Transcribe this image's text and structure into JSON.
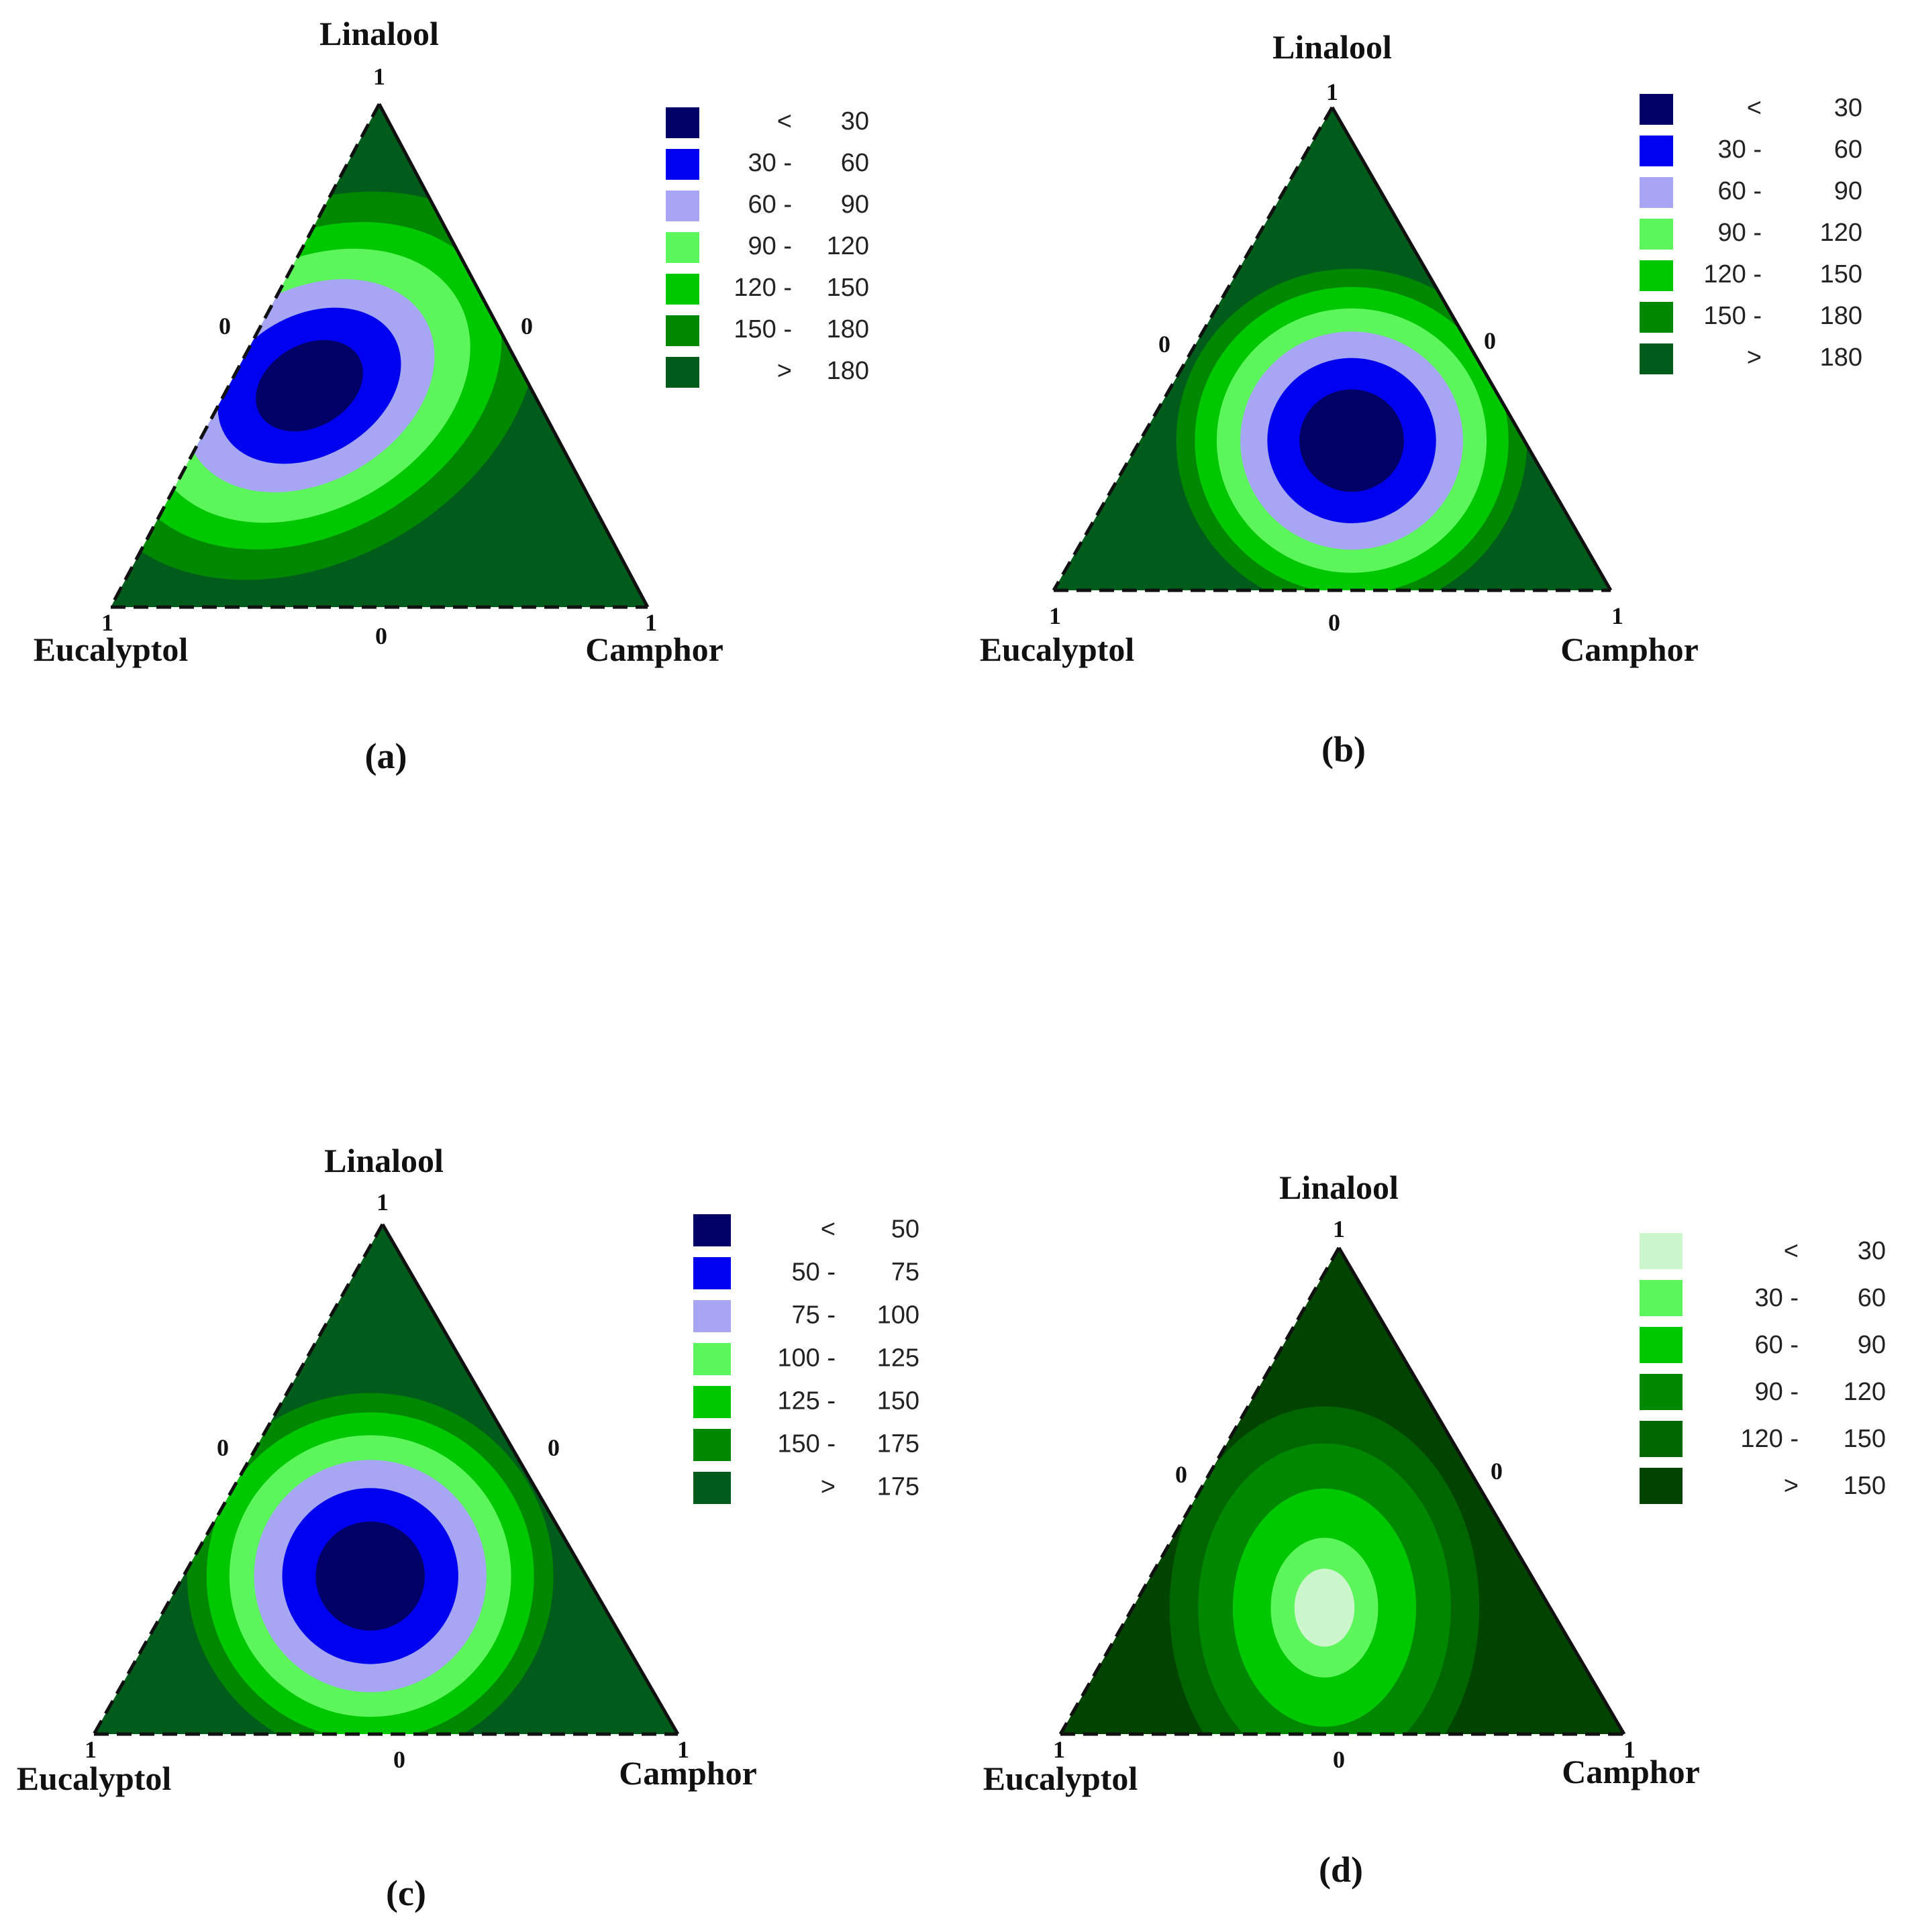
{
  "chart_data": [
    {
      "type": "ternary-contour",
      "panel_label": "(a)",
      "vertices": {
        "top": "Linalool",
        "left": "Eucalyptol",
        "right": "Camphor"
      },
      "ticks": {
        "top": "1",
        "left": "1",
        "right": "1",
        "mid_left": "0",
        "mid_right": "0",
        "mid_bottom": "0"
      },
      "legend": [
        {
          "lo": "<",
          "hi": "30",
          "color": "#000066"
        },
        {
          "lo": "30 -",
          "hi": "60",
          "color": "#0000f0"
        },
        {
          "lo": "60 -",
          "hi": "90",
          "color": "#a6a6f5"
        },
        {
          "lo": "90 -",
          "hi": "120",
          "color": "#5cf55c"
        },
        {
          "lo": "120 -",
          "hi": "150",
          "color": "#00c800"
        },
        {
          "lo": "150 -",
          "hi": "180",
          "color": "#008800"
        },
        {
          "lo": ">",
          "hi": "180",
          "color": "#005c1a"
        }
      ],
      "contour_center": {
        "linalool": 0.44,
        "eucalyptol": 0.41,
        "camphor": 0.15
      }
    },
    {
      "type": "ternary-contour",
      "panel_label": "(b)",
      "vertices": {
        "top": "Linalool",
        "left": "Eucalyptol",
        "right": "Camphor"
      },
      "ticks": {
        "top": "1",
        "left": "1",
        "right": "1",
        "mid_left": "0",
        "mid_right": "0",
        "mid_bottom": "0"
      },
      "legend": [
        {
          "lo": "<",
          "hi": "30",
          "color": "#000066"
        },
        {
          "lo": "30 -",
          "hi": "60",
          "color": "#0000f0"
        },
        {
          "lo": "60 -",
          "hi": "90",
          "color": "#a6a6f5"
        },
        {
          "lo": "90 -",
          "hi": "120",
          "color": "#5cf55c"
        },
        {
          "lo": "120 -",
          "hi": "150",
          "color": "#00c800"
        },
        {
          "lo": "150 -",
          "hi": "180",
          "color": "#008800"
        },
        {
          "lo": ">",
          "hi": "180",
          "color": "#005c1a"
        }
      ],
      "contour_center": {
        "linalool": 0.31,
        "eucalyptol": 0.31,
        "camphor": 0.38
      }
    },
    {
      "type": "ternary-contour",
      "panel_label": "(c)",
      "vertices": {
        "top": "Linalool",
        "left": "Eucalyptol",
        "right": "Camphor"
      },
      "ticks": {
        "top": "1",
        "left": "1",
        "right": "1",
        "mid_left": "0",
        "mid_right": "0",
        "mid_bottom": "0"
      },
      "legend": [
        {
          "lo": "<",
          "hi": "50",
          "color": "#000066"
        },
        {
          "lo": "50 -",
          "hi": "75",
          "color": "#0000f0"
        },
        {
          "lo": "75 -",
          "hi": "100",
          "color": "#a6a6f5"
        },
        {
          "lo": "100 -",
          "hi": "125",
          "color": "#5cf55c"
        },
        {
          "lo": "125 -",
          "hi": "150",
          "color": "#00c800"
        },
        {
          "lo": "150 -",
          "hi": "175",
          "color": "#008800"
        },
        {
          "lo": ">",
          "hi": "175",
          "color": "#005c1a"
        }
      ],
      "contour_center": {
        "linalool": 0.31,
        "eucalyptol": 0.37,
        "camphor": 0.32
      }
    },
    {
      "type": "ternary-contour",
      "panel_label": "(d)",
      "vertices": {
        "top": "Linalool",
        "left": "Eucalyptol",
        "right": "Camphor"
      },
      "ticks": {
        "top": "1",
        "left": "1",
        "right": "1",
        "mid_left": "0",
        "mid_right": "0",
        "mid_bottom": "0"
      },
      "legend": [
        {
          "lo": "<",
          "hi": "30",
          "color": "#ccf7cc"
        },
        {
          "lo": "30 -",
          "hi": "60",
          "color": "#5cf55c"
        },
        {
          "lo": "60 -",
          "hi": "90",
          "color": "#00c800"
        },
        {
          "lo": "90 -",
          "hi": "120",
          "color": "#008800"
        },
        {
          "lo": "120 -",
          "hi": "150",
          "color": "#006600"
        },
        {
          "lo": ">",
          "hi": "150",
          "color": "#004400"
        }
      ],
      "contour_center": {
        "linalool": 0.26,
        "eucalyptol": 0.4,
        "camphor": 0.34
      }
    }
  ]
}
